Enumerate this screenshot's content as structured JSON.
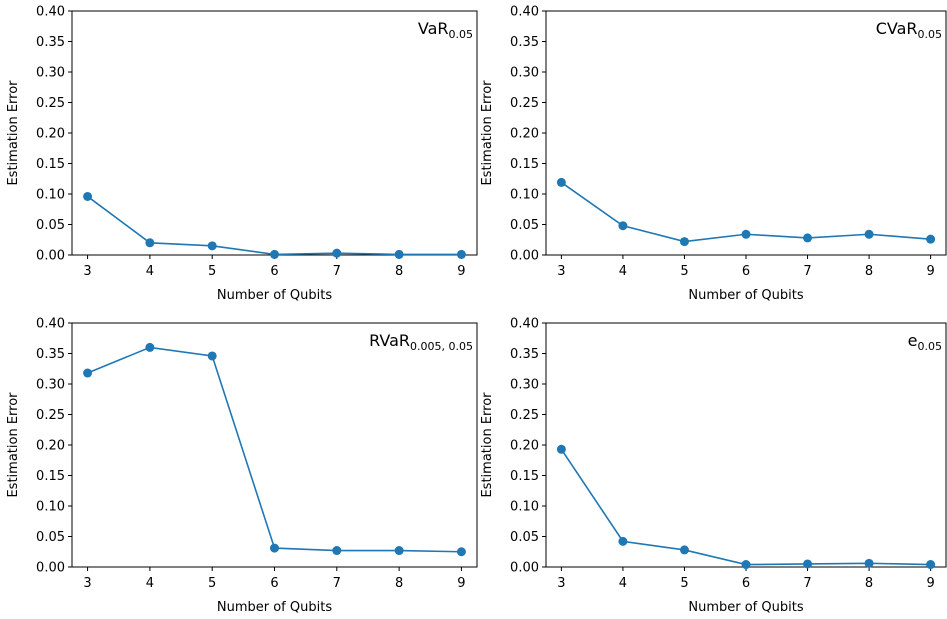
{
  "chart_data": [
    {
      "type": "line",
      "title": "VaR",
      "title_subscript": "0.05",
      "title_position": "top-right",
      "xlabel": "Number of Qubits",
      "ylabel": "Estimation Error",
      "x": [
        3,
        4,
        5,
        6,
        7,
        8,
        9
      ],
      "series": [
        {
          "values": [
            0.096,
            0.02,
            0.015,
            0.001,
            0.003,
            0.001,
            0.001
          ]
        }
      ],
      "xticks": [
        "3",
        "4",
        "5",
        "6",
        "7",
        "8",
        "9"
      ],
      "yticks": [
        "0.00",
        "0.05",
        "0.10",
        "0.15",
        "0.20",
        "0.25",
        "0.30",
        "0.35",
        "0.40"
      ],
      "xlim": [
        2.75,
        9.25
      ],
      "ylim": [
        0,
        0.4
      ],
      "grid": false,
      "marker": "circle",
      "color": "#1f77b4"
    },
    {
      "type": "line",
      "title": "CVaR",
      "title_subscript": "0.05",
      "title_position": "top-right",
      "xlabel": "Number of Qubits",
      "ylabel": "Estimation Error",
      "x": [
        3,
        4,
        5,
        6,
        7,
        8,
        9
      ],
      "series": [
        {
          "values": [
            0.119,
            0.048,
            0.022,
            0.034,
            0.028,
            0.034,
            0.026
          ]
        }
      ],
      "xticks": [
        "3",
        "4",
        "5",
        "6",
        "7",
        "8",
        "9"
      ],
      "yticks": [
        "0.00",
        "0.05",
        "0.10",
        "0.15",
        "0.20",
        "0.25",
        "0.30",
        "0.35",
        "0.40"
      ],
      "xlim": [
        2.75,
        9.25
      ],
      "ylim": [
        0,
        0.4
      ],
      "grid": false,
      "marker": "circle",
      "color": "#1f77b4"
    },
    {
      "type": "line",
      "title": "RVaR",
      "title_subscript": "0.005, 0.05",
      "title_position": "top-right",
      "xlabel": "Number of Qubits",
      "ylabel": "Estimation Error",
      "x": [
        3,
        4,
        5,
        6,
        7,
        8,
        9
      ],
      "series": [
        {
          "values": [
            0.318,
            0.36,
            0.346,
            0.031,
            0.027,
            0.027,
            0.025
          ]
        }
      ],
      "xticks": [
        "3",
        "4",
        "5",
        "6",
        "7",
        "8",
        "9"
      ],
      "yticks": [
        "0.00",
        "0.05",
        "0.10",
        "0.15",
        "0.20",
        "0.25",
        "0.30",
        "0.35",
        "0.40"
      ],
      "xlim": [
        2.75,
        9.25
      ],
      "ylim": [
        0,
        0.4
      ],
      "grid": false,
      "marker": "circle",
      "color": "#1f77b4"
    },
    {
      "type": "line",
      "title": "e",
      "title_subscript": "0.05",
      "title_position": "top-right",
      "xlabel": "Number of Qubits",
      "ylabel": "Estimation Error",
      "x": [
        3,
        4,
        5,
        6,
        7,
        8,
        9
      ],
      "series": [
        {
          "values": [
            0.193,
            0.042,
            0.028,
            0.004,
            0.005,
            0.006,
            0.004
          ]
        }
      ],
      "xticks": [
        "3",
        "4",
        "5",
        "6",
        "7",
        "8",
        "9"
      ],
      "yticks": [
        "0.00",
        "0.05",
        "0.10",
        "0.15",
        "0.20",
        "0.25",
        "0.30",
        "0.35",
        "0.40"
      ],
      "xlim": [
        2.75,
        9.25
      ],
      "ylim": [
        0,
        0.4
      ],
      "grid": false,
      "marker": "circle",
      "color": "#1f77b4"
    }
  ]
}
